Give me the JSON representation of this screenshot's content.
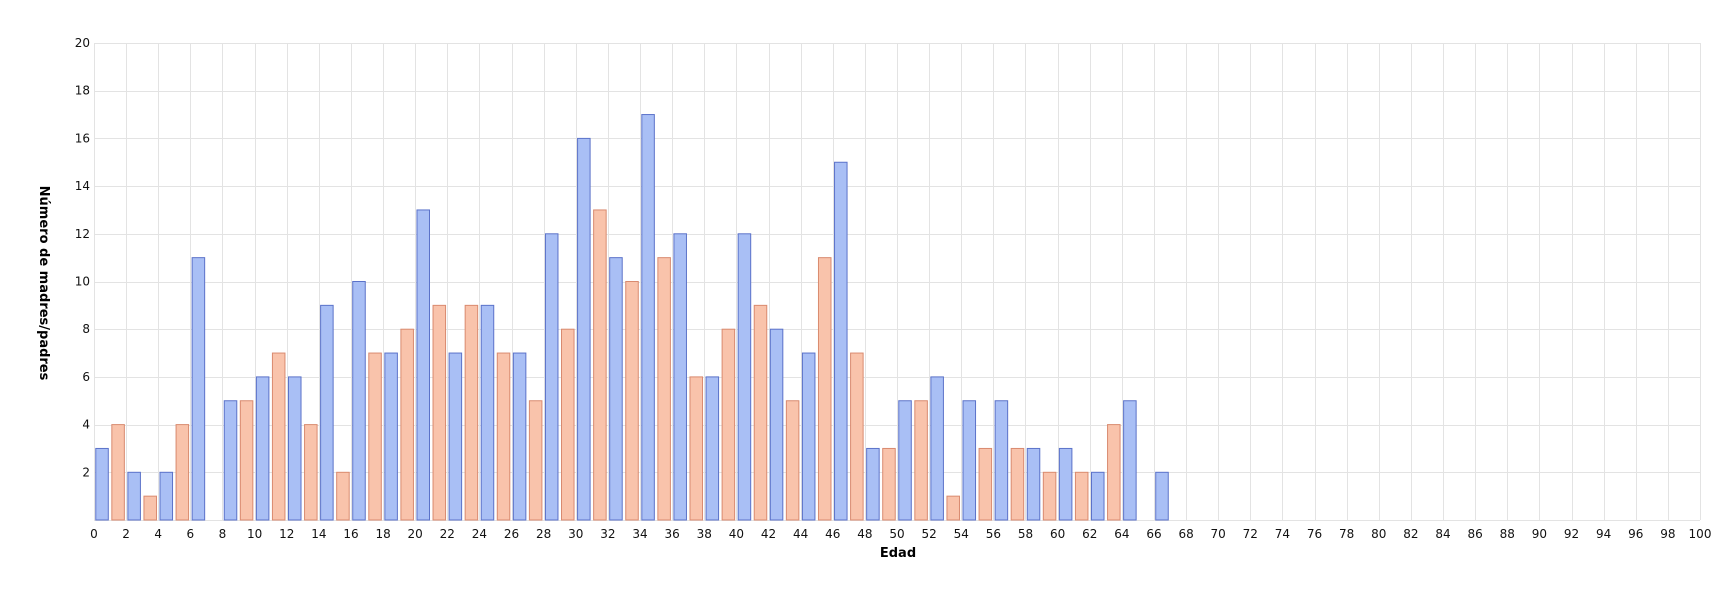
{
  "chart_data": {
    "type": "bar",
    "title": "",
    "xlabel": "Edad",
    "ylabel": "Número de madres/padres",
    "xlim": [
      0,
      100
    ],
    "ylim": [
      0,
      20
    ],
    "x_ticks": [
      0,
      2,
      4,
      6,
      8,
      10,
      12,
      14,
      16,
      18,
      20,
      22,
      24,
      26,
      28,
      30,
      32,
      34,
      36,
      38,
      40,
      42,
      44,
      46,
      48,
      50,
      52,
      54,
      56,
      58,
      60,
      62,
      64,
      66,
      68,
      70,
      72,
      74,
      76,
      78,
      80,
      82,
      84,
      86,
      88,
      90,
      92,
      94,
      96,
      98,
      100
    ],
    "y_ticks": [
      2,
      4,
      6,
      8,
      10,
      12,
      14,
      16,
      18,
      20
    ],
    "grid": true,
    "legend": "none",
    "series": [
      {
        "name": "blue",
        "color": "#a9bff5",
        "edge": "#5b72c9",
        "points": [
          {
            "x": 0,
            "y": 3
          },
          {
            "x": 2,
            "y": 2
          },
          {
            "x": 4,
            "y": 2
          },
          {
            "x": 6,
            "y": 11
          },
          {
            "x": 8,
            "y": 5
          },
          {
            "x": 10,
            "y": 6
          },
          {
            "x": 12,
            "y": 6
          },
          {
            "x": 14,
            "y": 9
          },
          {
            "x": 16,
            "y": 10
          },
          {
            "x": 18,
            "y": 7
          },
          {
            "x": 20,
            "y": 13
          },
          {
            "x": 22,
            "y": 7
          },
          {
            "x": 24,
            "y": 9
          },
          {
            "x": 26,
            "y": 7
          },
          {
            "x": 28,
            "y": 12
          },
          {
            "x": 30,
            "y": 16
          },
          {
            "x": 32,
            "y": 11
          },
          {
            "x": 34,
            "y": 17
          },
          {
            "x": 36,
            "y": 12
          },
          {
            "x": 38,
            "y": 6
          },
          {
            "x": 40,
            "y": 12
          },
          {
            "x": 42,
            "y": 8
          },
          {
            "x": 44,
            "y": 7
          },
          {
            "x": 46,
            "y": 15
          },
          {
            "x": 48,
            "y": 3
          },
          {
            "x": 50,
            "y": 5
          },
          {
            "x": 52,
            "y": 6
          },
          {
            "x": 54,
            "y": 5
          },
          {
            "x": 56,
            "y": 5
          },
          {
            "x": 58,
            "y": 3
          },
          {
            "x": 60,
            "y": 3
          },
          {
            "x": 62,
            "y": 2
          },
          {
            "x": 64,
            "y": 5
          },
          {
            "x": 66,
            "y": 2
          }
        ]
      },
      {
        "name": "salmon",
        "color": "#f9c3ab",
        "edge": "#d98a6f",
        "points": [
          {
            "x": 1,
            "y": 4
          },
          {
            "x": 3,
            "y": 1
          },
          {
            "x": 5,
            "y": 4
          },
          {
            "x": 9,
            "y": 5
          },
          {
            "x": 11,
            "y": 7
          },
          {
            "x": 13,
            "y": 4
          },
          {
            "x": 15,
            "y": 2
          },
          {
            "x": 17,
            "y": 7
          },
          {
            "x": 19,
            "y": 8
          },
          {
            "x": 21,
            "y": 9
          },
          {
            "x": 23,
            "y": 9
          },
          {
            "x": 25,
            "y": 7
          },
          {
            "x": 27,
            "y": 5
          },
          {
            "x": 29,
            "y": 8
          },
          {
            "x": 31,
            "y": 13
          },
          {
            "x": 33,
            "y": 10
          },
          {
            "x": 35,
            "y": 11
          },
          {
            "x": 37,
            "y": 6
          },
          {
            "x": 39,
            "y": 8
          },
          {
            "x": 41,
            "y": 9
          },
          {
            "x": 43,
            "y": 5
          },
          {
            "x": 45,
            "y": 11
          },
          {
            "x": 47,
            "y": 7
          },
          {
            "x": 49,
            "y": 3
          },
          {
            "x": 51,
            "y": 5
          },
          {
            "x": 53,
            "y": 1
          },
          {
            "x": 55,
            "y": 3
          },
          {
            "x": 57,
            "y": 3
          },
          {
            "x": 59,
            "y": 2
          },
          {
            "x": 61,
            "y": 2
          },
          {
            "x": 63,
            "y": 4
          }
        ]
      }
    ]
  }
}
